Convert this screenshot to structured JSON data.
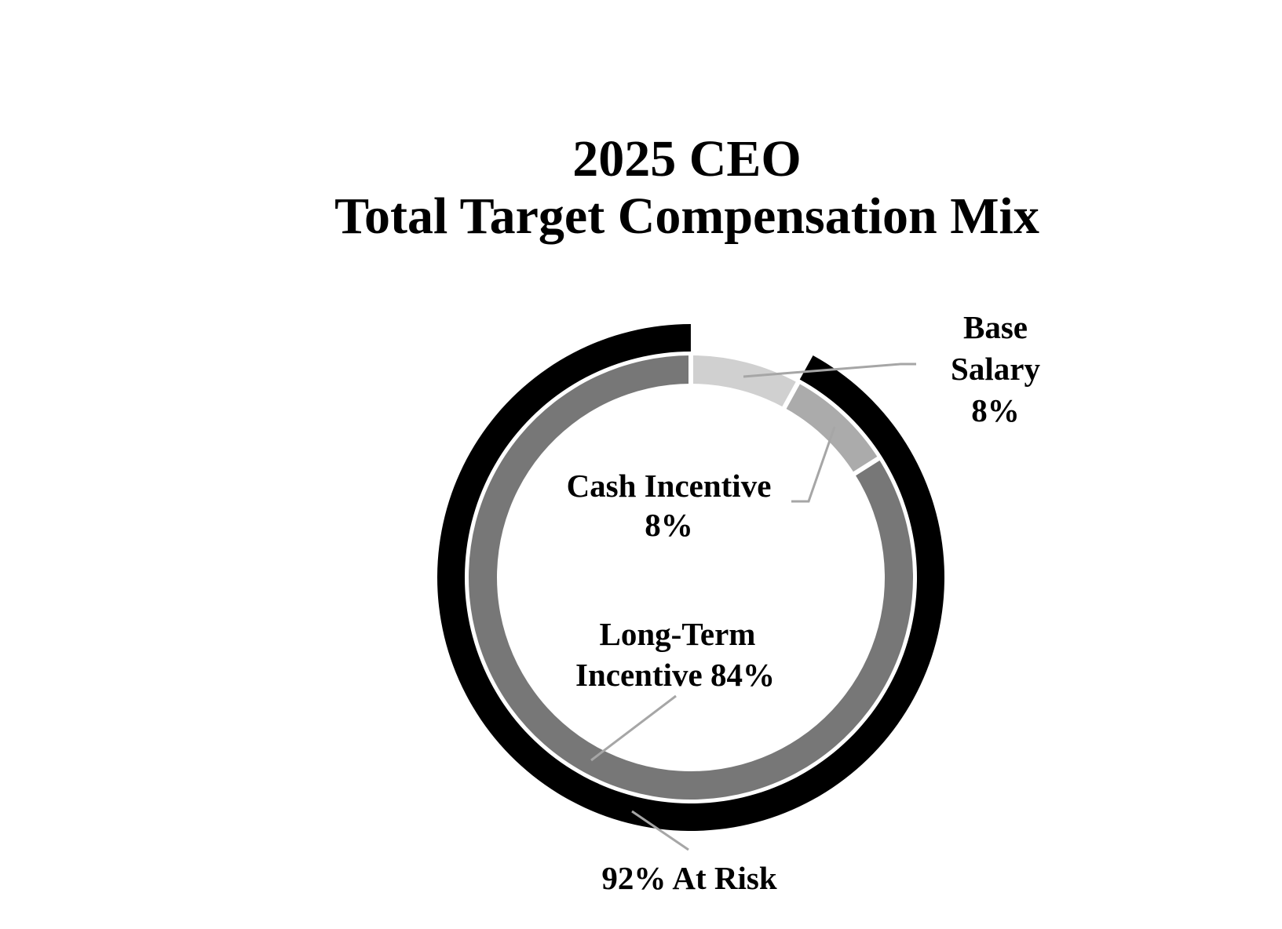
{
  "title": {
    "line1": "2025 CEO",
    "line2": "Total Target Compensation Mix"
  },
  "labels": {
    "base_salary": [
      "Base",
      "Salary",
      "8%"
    ],
    "cash_incentive": [
      "Cash Incentive",
      "8%"
    ],
    "long_term_incentive": [
      "Long-Term",
      "Incentive 84%"
    ],
    "at_risk": "92% At Risk"
  },
  "colors": {
    "base_salary": "#d0d0d0",
    "cash_incentive": "#ababab",
    "long_term_incentive": "#777777",
    "at_risk": "#000000",
    "leader_line": "#a6a6a6"
  },
  "chart_data": {
    "type": "pie",
    "subtype": "nested-donut",
    "title": "2025 CEO Total Target Compensation Mix",
    "inner_ring": {
      "categories": [
        "Base Salary",
        "Cash Incentive",
        "Long-Term Incentive"
      ],
      "values": [
        8,
        8,
        84
      ],
      "unit": "%"
    },
    "outer_ring": {
      "categories": [
        "At Risk"
      ],
      "values": [
        92
      ],
      "span_of": [
        "Cash Incentive",
        "Long-Term Incentive"
      ],
      "unit": "%"
    },
    "annotations": [
      "Base Salary 8%",
      "Cash Incentive 8%",
      "Long-Term Incentive 84%",
      "92% At Risk"
    ],
    "legend": "none (direct labels with leader lines)"
  }
}
